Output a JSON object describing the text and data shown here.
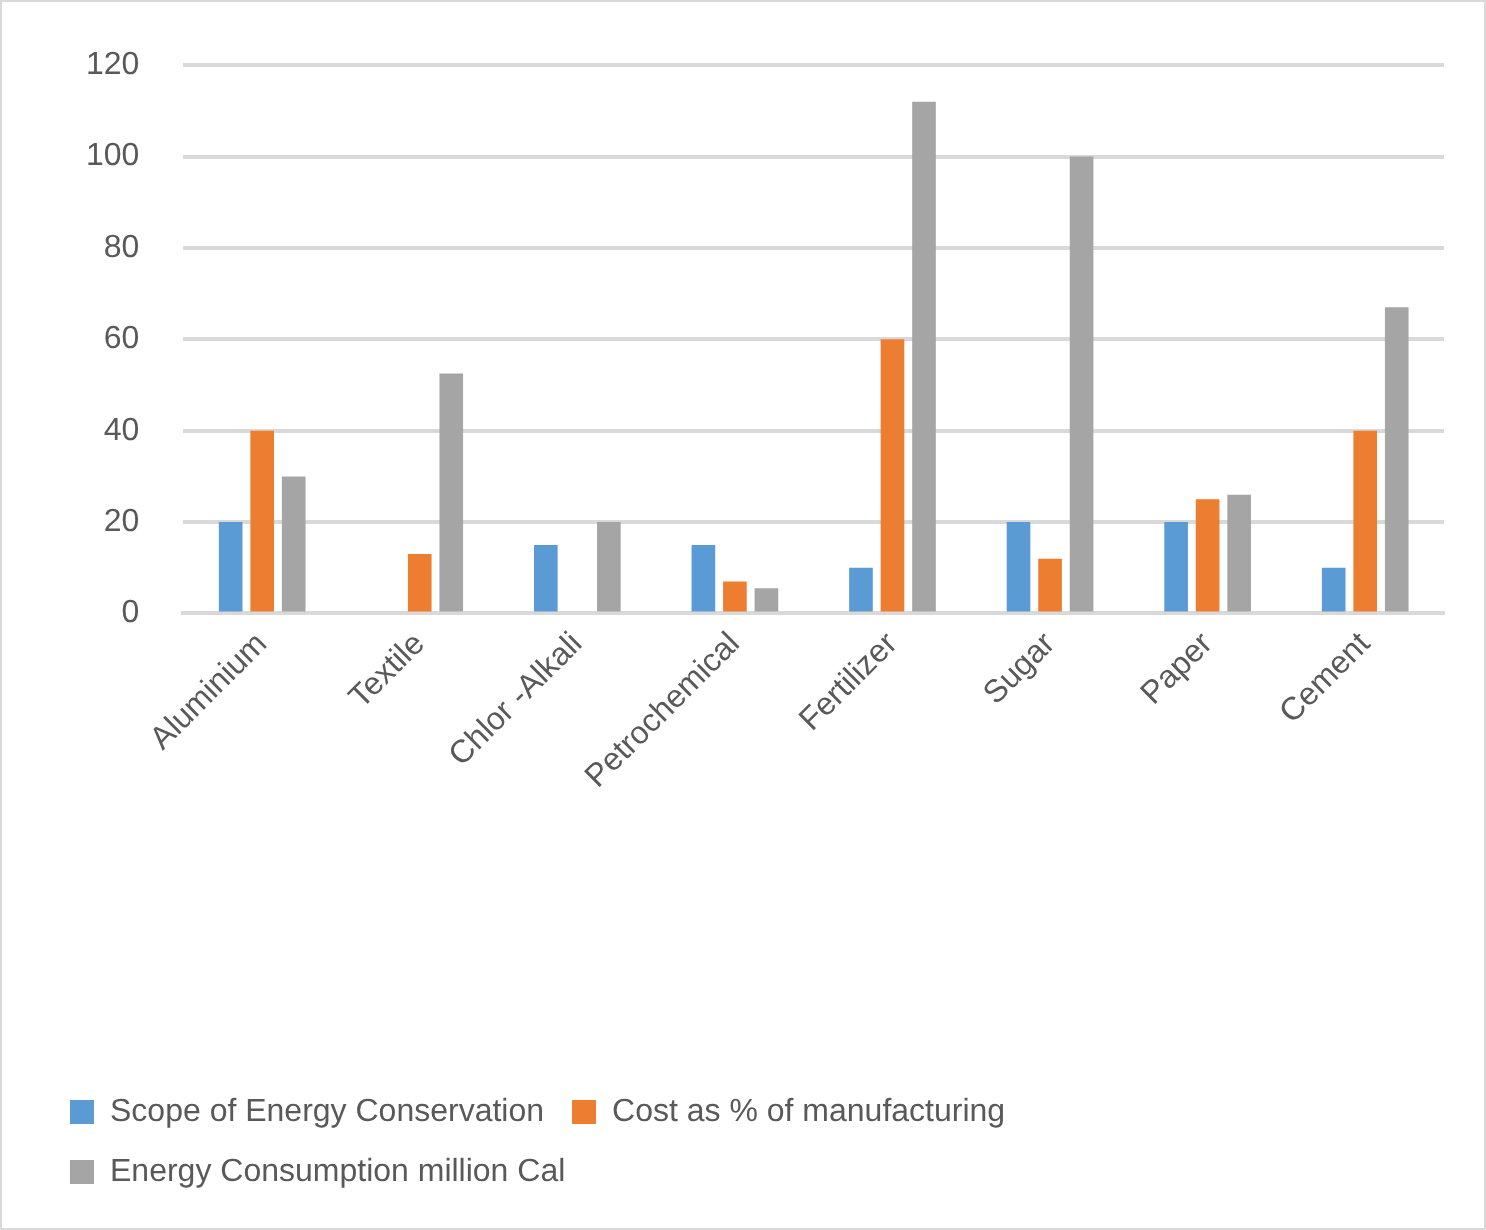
{
  "chart_data": {
    "type": "bar",
    "categories": [
      "Aluminium",
      "Textile",
      "Chlor -Alkali",
      "Petrochemical",
      "Fertilizer",
      "Sugar",
      "Paper",
      "Cement"
    ],
    "series": [
      {
        "name": "Scope of Energy Conservation",
        "color": "#5b9bd5",
        "values": [
          20,
          null,
          15,
          15,
          10,
          20,
          20,
          10
        ]
      },
      {
        "name": "Cost as % of manufacturing",
        "color": "#ed7d31",
        "values": [
          40,
          13,
          null,
          7,
          60,
          12,
          25,
          40
        ]
      },
      {
        "name": "Energy Consumption million Cal",
        "color": "#a5a5a5",
        "values": [
          30,
          52.5,
          20,
          5.5,
          112,
          100,
          26,
          67
        ]
      }
    ],
    "ylim": [
      0,
      120
    ],
    "yticks": [
      0,
      20,
      40,
      60,
      80,
      100,
      120
    ],
    "grid": "y",
    "legend": "bottom"
  }
}
